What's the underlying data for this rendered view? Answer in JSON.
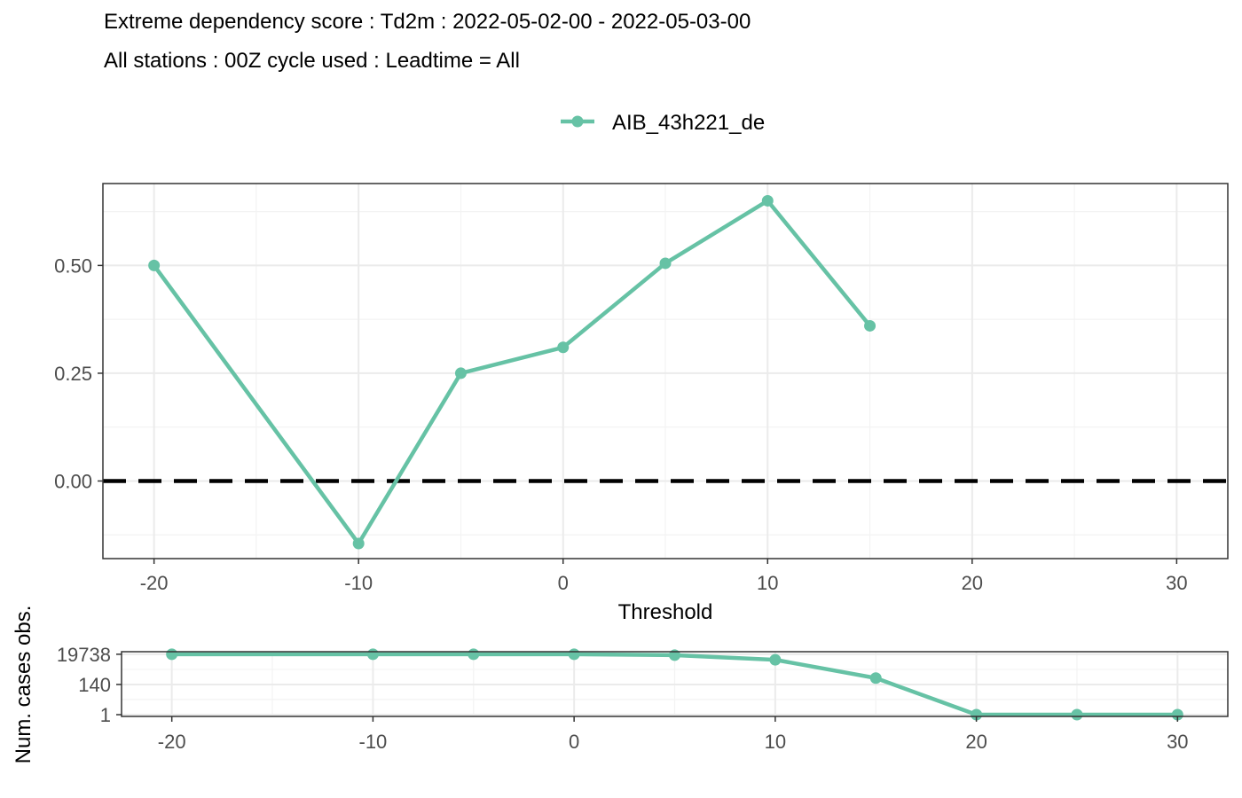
{
  "header": {
    "title": "Extreme dependency score : Td2m : 2022-05-02-00 - 2022-05-03-00",
    "subtitle": "All stations : 00Z cycle used : Leadtime = All"
  },
  "colors": {
    "series": "#66c2a5",
    "reference": "#000000",
    "grid_major": "#ebebeb",
    "grid_minor": "#f3f3f3",
    "panel_border": "#333333"
  },
  "chart_data": [
    {
      "type": "line",
      "xlabel": "Threshold",
      "ylabel": "",
      "xlim": [
        -22.5,
        32.5
      ],
      "ylim": [
        -0.18,
        0.69
      ],
      "x_ticks": [
        -20,
        -10,
        0,
        10,
        20,
        30
      ],
      "y_ticks": [
        0.0,
        0.25,
        0.5
      ],
      "y_tick_labels": [
        "0.00",
        "0.25",
        "0.50"
      ],
      "grid": true,
      "legend_position": "top",
      "reference_line": {
        "y": 0,
        "style": "dashed"
      },
      "series": [
        {
          "name": "AIB_43h221_de",
          "x": [
            -20,
            -10,
            -5,
            0,
            5,
            10,
            15
          ],
          "y": [
            0.5,
            -0.145,
            0.25,
            0.31,
            0.505,
            0.65,
            0.36
          ]
        }
      ]
    },
    {
      "type": "line",
      "xlabel": "",
      "ylabel": "Num. cases obs.",
      "xlim": [
        -22.5,
        32.5
      ],
      "y_scale": "log",
      "y_ticks": [
        1,
        140,
        19738
      ],
      "y_tick_labels": [
        "1",
        "140",
        "19738"
      ],
      "x_ticks": [
        -20,
        -10,
        0,
        10,
        20,
        30
      ],
      "grid": true,
      "series": [
        {
          "name": "AIB_43h221_de",
          "x": [
            -20,
            -10,
            -5,
            0,
            5,
            10,
            15,
            20,
            25,
            30
          ],
          "y": [
            19738,
            19738,
            19738,
            19738,
            17000,
            8000,
            400,
            1,
            1,
            1
          ]
        }
      ]
    }
  ]
}
